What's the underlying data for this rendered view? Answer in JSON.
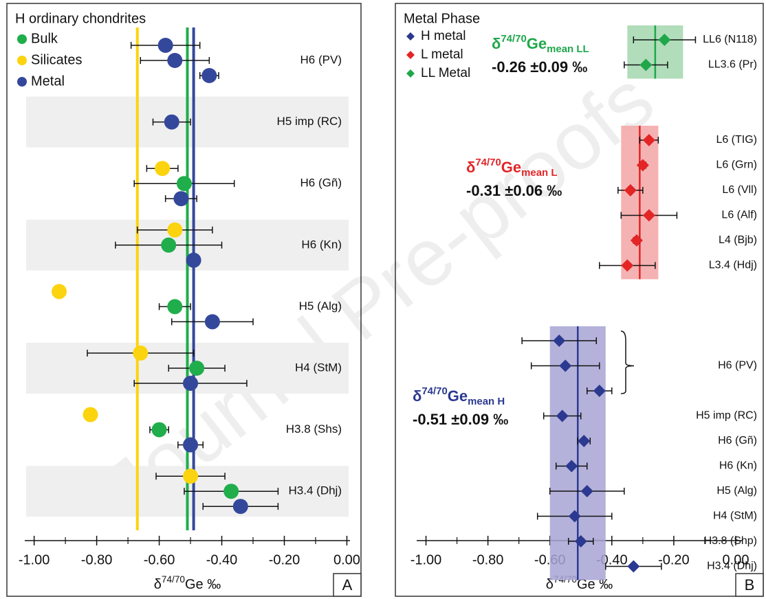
{
  "watermark": "Journal Pre-proofs",
  "chart_data": [
    {
      "type": "dot",
      "label": "A",
      "legend_title": "H ordinary chondrites",
      "series": [
        {
          "name": "Bulk",
          "color": "#1fae4b",
          "mean": -0.51
        },
        {
          "name": "Silicates",
          "color": "#fcd30f",
          "mean": -0.67
        },
        {
          "name": "Metal",
          "color": "#34489b",
          "mean": -0.49
        }
      ],
      "rows": [
        {
          "label": "H6 (PV)",
          "values": [
            [],
            [],
            [
              {
                "value": -0.58,
                "error": 0.11
              },
              {
                "value": -0.55,
                "error": 0.11
              },
              {
                "value": -0.44,
                "error": 0.03
              }
            ]
          ]
        },
        {
          "label": "H5 imp (RC)",
          "values": [
            [],
            [],
            [
              {
                "value": -0.56,
                "error": 0.06
              }
            ]
          ]
        },
        {
          "label": "H6 (Gñ)",
          "values": [
            [
              {
                "value": -0.52,
                "error": 0.16
              }
            ],
            [
              {
                "value": -0.59,
                "error": 0.05
              }
            ],
            [
              {
                "value": -0.53,
                "error": 0.05
              }
            ]
          ]
        },
        {
          "label": "H6 (Kn)",
          "values": [
            [
              {
                "value": -0.57,
                "error": 0.17
              }
            ],
            [
              {
                "value": -0.55,
                "error": 0.12
              }
            ],
            [
              {
                "value": -0.49
              }
            ]
          ]
        },
        {
          "label": "H5 (Alg)",
          "values": [
            [
              {
                "value": -0.55,
                "error": 0.05
              }
            ],
            [
              {
                "value": -0.92
              }
            ],
            [
              {
                "value": -0.43,
                "error": 0.13
              }
            ]
          ]
        },
        {
          "label": "H4 (StM)",
          "values": [
            [
              {
                "value": -0.48,
                "error": 0.09
              }
            ],
            [
              {
                "value": -0.66,
                "error": 0.17
              }
            ],
            [
              {
                "value": -0.5,
                "error": 0.18
              }
            ]
          ]
        },
        {
          "label": "H3.8 (Shs)",
          "values": [
            [
              {
                "value": -0.6,
                "error": 0.03
              }
            ],
            [
              {
                "value": -0.82
              }
            ],
            [
              {
                "value": -0.5,
                "error": 0.04
              }
            ]
          ]
        },
        {
          "label": "H3.4 (Dhj)",
          "values": [
            [
              {
                "value": -0.37,
                "error": 0.15
              }
            ],
            [
              {
                "value": -0.5,
                "error": 0.11
              }
            ],
            [
              {
                "value": -0.34,
                "error": 0.12
              }
            ]
          ]
        }
      ],
      "xlabel": {
        "prefix": "δ",
        "superscript": "74/70",
        "suffix": "Ge ‰"
      },
      "xlim": [
        -1.03,
        0.01
      ],
      "xticks": [
        {
          "value": -1,
          "label": "-1.00"
        },
        {
          "value": -0.8,
          "label": "-0.80"
        },
        {
          "value": -0.6,
          "label": "-0.60"
        },
        {
          "value": -0.4,
          "label": "-0.40"
        },
        {
          "value": -0.2,
          "label": "-0.20"
        },
        {
          "value": 0,
          "label": "0.00"
        }
      ],
      "minor_xticks": [
        -0.9,
        -0.7,
        -0.5,
        -0.3,
        -0.1
      ]
    },
    {
      "type": "forest",
      "label": "B",
      "legend_title": "Metal Phase",
      "series": [
        {
          "name": "H metal",
          "color": "#2b3990",
          "band_color": "#a7a4d4",
          "mean": -0.51,
          "sd": 0.09,
          "annotation": {
            "prefix": "δ",
            "superscript": "74/70",
            "base": "Ge",
            "subscript": "mean H",
            "text": "-0.51 ±0.09 ‰"
          },
          "rows": [
            {
              "label": "H6 (PV)",
              "values": [
                {
                  "value": -0.57,
                  "error": 0.12
                },
                {
                  "value": -0.55,
                  "error": 0.11
                },
                {
                  "value": -0.44,
                  "error": 0.04
                }
              ]
            },
            {
              "label": "H5 imp (RC)",
              "values": [
                {
                  "value": -0.56,
                  "error": 0.06
                }
              ]
            },
            {
              "label": "H6 (Gñ)",
              "values": [
                {
                  "value": -0.49,
                  "error": 0.02
                }
              ]
            },
            {
              "label": "H6 (Kn)",
              "values": [
                {
                  "value": -0.53,
                  "error": 0.05
                }
              ]
            },
            {
              "label": "H5 (Alg)",
              "values": [
                {
                  "value": -0.48,
                  "error": 0.12
                }
              ]
            },
            {
              "label": "H4 (StM)",
              "values": [
                {
                  "value": -0.52,
                  "error": 0.12
                }
              ]
            },
            {
              "label": "H3.8 (Shp)",
              "values": [
                {
                  "value": -0.5,
                  "error": 0.04
                }
              ]
            },
            {
              "label": "H3.4 (Dhj)",
              "values": [
                {
                  "value": -0.33,
                  "error": 0.09
                }
              ]
            }
          ]
        },
        {
          "name": "L metal",
          "color": "#e32526",
          "band_color": "#f3a4a6",
          "mean": -0.31,
          "sd": 0.06,
          "annotation": {
            "prefix": "δ",
            "superscript": "74/70",
            "base": "Ge",
            "subscript": "mean L",
            "text": "-0.31 ±0.06 ‰"
          },
          "rows": [
            {
              "label": "L6 (TIG)",
              "values": [
                {
                  "value": -0.28,
                  "error": 0.03
                }
              ]
            },
            {
              "label": "L6 (Grn)",
              "values": [
                {
                  "value": -0.3,
                  "error": 0.01
                }
              ]
            },
            {
              "label": "L6 (Vll)",
              "values": [
                {
                  "value": -0.34,
                  "error": 0.04
                }
              ]
            },
            {
              "label": "L6 (Alf)",
              "values": [
                {
                  "value": -0.28,
                  "error": 0.09
                }
              ]
            },
            {
              "label": "L4 (Bjb)",
              "values": [
                {
                  "value": -0.32,
                  "error": 0.01
                }
              ]
            },
            {
              "label": "L3.4 (Hdj)",
              "values": [
                {
                  "value": -0.35,
                  "error": 0.09
                }
              ]
            }
          ]
        },
        {
          "name": "LL Metal",
          "color": "#1fa74a",
          "band_color": "#a3d7ae",
          "mean": -0.26,
          "sd": 0.09,
          "annotation": {
            "prefix": "δ",
            "superscript": "74/70",
            "base": "Ge",
            "subscript": "mean LL",
            "text": "-0.26 ±0.09 ‰"
          },
          "rows": [
            {
              "label": "LL6 (N118)",
              "values": [
                {
                  "value": -0.23,
                  "error": 0.1
                }
              ]
            },
            {
              "label": "LL3.6 (Pr)",
              "values": [
                {
                  "value": -0.29,
                  "error": 0.07
                }
              ]
            }
          ]
        }
      ],
      "xlabel": {
        "prefix": "δ",
        "superscript": "74/70",
        "suffix": "Ge ‰"
      },
      "xlim": [
        -1.03,
        0.02
      ],
      "xticks": [
        {
          "value": -1,
          "label": "-1.00"
        },
        {
          "value": -0.8,
          "label": "-0.80"
        },
        {
          "value": -0.6,
          "label": "-0.60"
        },
        {
          "value": -0.4,
          "label": "-0.40"
        },
        {
          "value": -0.2,
          "label": "-0.20"
        },
        {
          "value": 0,
          "label": "0.00"
        }
      ],
      "minor_xticks": [
        -0.9,
        -0.7,
        -0.5,
        -0.3,
        -0.1
      ]
    }
  ]
}
